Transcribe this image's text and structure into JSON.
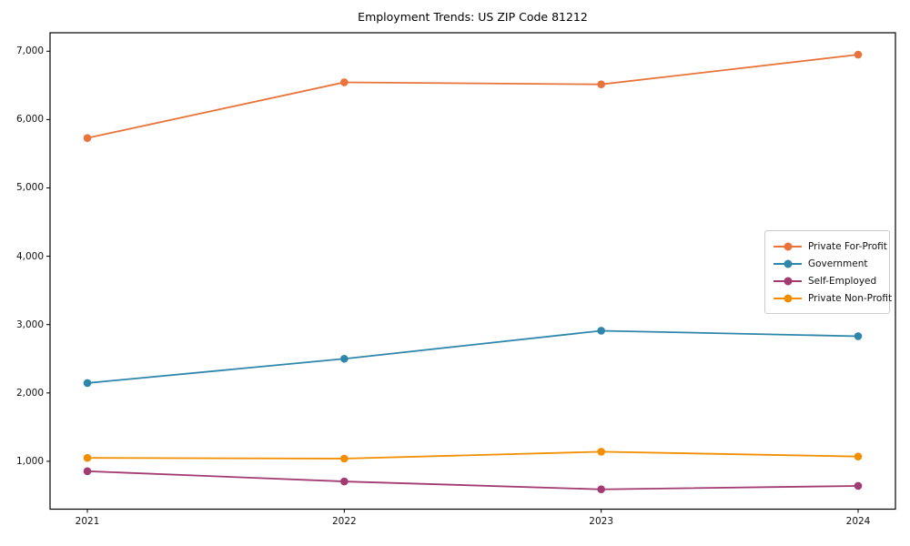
{
  "chart_data": {
    "type": "line",
    "title": "Employment Trends: US ZIP Code 81212",
    "categories": [
      "2021",
      "2022",
      "2023",
      "2024"
    ],
    "series": [
      {
        "name": "Private For-Profit",
        "color": "#E8743B",
        "values": [
          5730,
          6545,
          6515,
          6950
        ]
      },
      {
        "name": "Government",
        "color": "#2E86AB",
        "values": [
          2145,
          2500,
          2910,
          2830
        ]
      },
      {
        "name": "Self-Employed",
        "color": "#A23B72",
        "values": [
          855,
          705,
          590,
          640
        ]
      },
      {
        "name": "Private Non-Profit",
        "color": "#F18F01",
        "values": [
          1050,
          1040,
          1140,
          1070
        ]
      }
    ],
    "yticks": [
      1000,
      2000,
      3000,
      4000,
      5000,
      6000,
      7000
    ],
    "ylim": [
      300,
      7270
    ],
    "xlabel": "",
    "ylabel": "",
    "grid": false,
    "marker": "circle",
    "legend_position": "center-right-inside",
    "axis_color": "#000000",
    "background_color": "#ffffff"
  }
}
